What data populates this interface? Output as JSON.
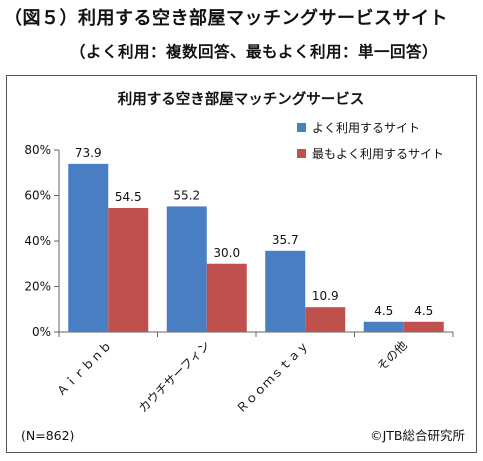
{
  "header": {
    "title": "（図５）利用する空き部屋マッチングサービスサイト",
    "subtitle": "（よく利用：複数回答、最もよく利用：単一回答）"
  },
  "chart_data": {
    "type": "bar",
    "title": "利用する空き部屋マッチングサービス",
    "categories": [
      "Ａｉｒｂｎｂ",
      "カウチサーフィン",
      "Ｒｏｏｍｓｔａｙ",
      "その他"
    ],
    "series": [
      {
        "name": "よく利用するサイト",
        "color": "#4a7ec3",
        "values": [
          73.9,
          55.2,
          35.7,
          4.5
        ]
      },
      {
        "name": "最もよく利用するサイト",
        "color": "#c0504d",
        "values": [
          54.5,
          30.0,
          10.9,
          4.5
        ]
      }
    ],
    "data_labels": [
      [
        "73.9",
        "55.2",
        "35.7",
        "4.5"
      ],
      [
        "54.5",
        "30.0",
        "10.9",
        "4.5"
      ]
    ],
    "ylim": [
      0,
      80
    ],
    "yticks": [
      "0%",
      "20%",
      "40%",
      "60%",
      "80%"
    ],
    "ytick_values": [
      0,
      20,
      40,
      60,
      80
    ],
    "grid": false,
    "legend_position": "top-right",
    "sample_note": "(N=862)",
    "source_note": "©JTB総合研究所"
  }
}
